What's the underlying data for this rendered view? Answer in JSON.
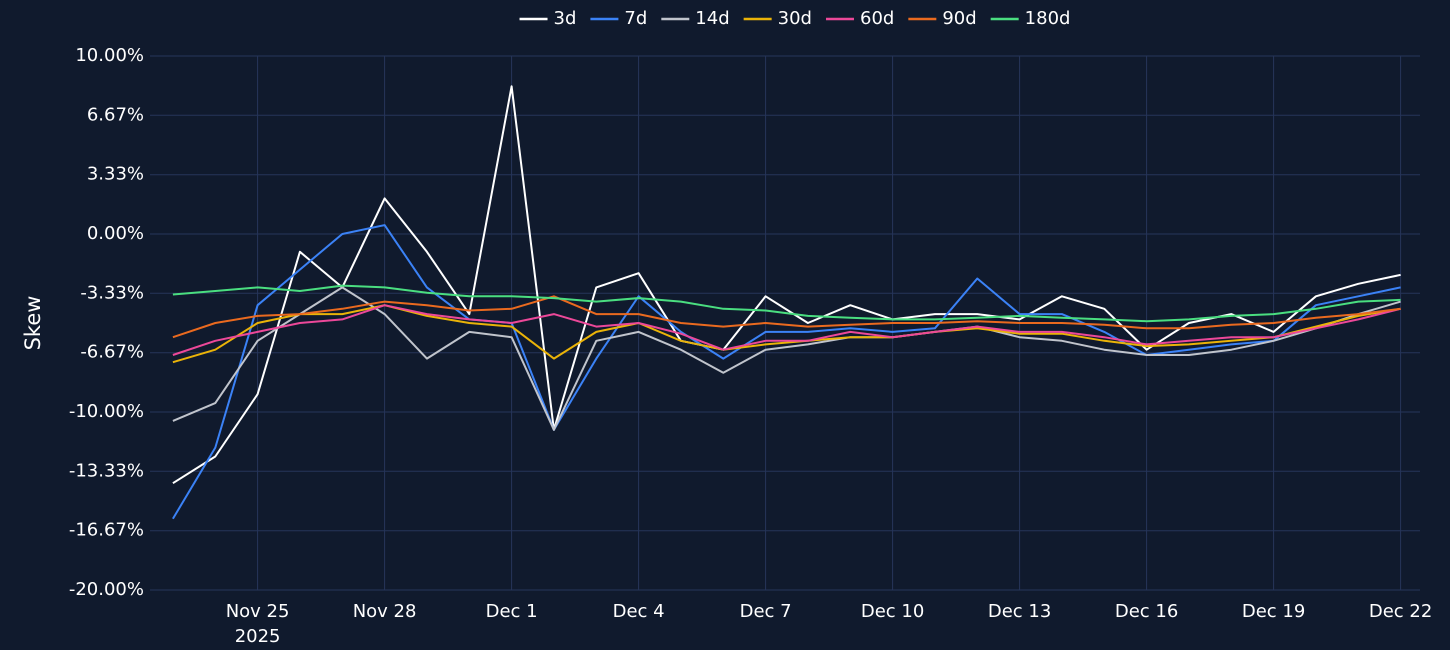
{
  "chart_data": {
    "type": "line",
    "ylabel": "Skew",
    "x": [
      "2025-11-23",
      "2025-11-24",
      "2025-11-25",
      "2025-11-26",
      "2025-11-27",
      "2025-11-28",
      "2025-11-29",
      "2025-11-30",
      "2025-12-01",
      "2025-12-02",
      "2025-12-03",
      "2025-12-04",
      "2025-12-05",
      "2025-12-06",
      "2025-12-07",
      "2025-12-08",
      "2025-12-09",
      "2025-12-10",
      "2025-12-11",
      "2025-12-12",
      "2025-12-13",
      "2025-12-14",
      "2025-12-15",
      "2025-12-16",
      "2025-12-17",
      "2025-12-18",
      "2025-12-19",
      "2025-12-20",
      "2025-12-21",
      "2025-12-22"
    ],
    "xlim": [
      "2025-11-22T11:00",
      "2025-12-22T11:00"
    ],
    "xticks": [
      {
        "value": "2025-11-25",
        "label": "Nov 25"
      },
      {
        "value": "2025-11-28",
        "label": "Nov 28"
      },
      {
        "value": "2025-12-01",
        "label": "Dec 1"
      },
      {
        "value": "2025-12-04",
        "label": "Dec 4"
      },
      {
        "value": "2025-12-07",
        "label": "Dec 7"
      },
      {
        "value": "2025-12-10",
        "label": "Dec 10"
      },
      {
        "value": "2025-12-13",
        "label": "Dec 13"
      },
      {
        "value": "2025-12-16",
        "label": "Dec 16"
      },
      {
        "value": "2025-12-19",
        "label": "Dec 19"
      },
      {
        "value": "2025-12-22",
        "label": "Dec 22"
      }
    ],
    "xtick_year": "2025",
    "ylim": [
      -20,
      10
    ],
    "yticks": [
      {
        "value": 10,
        "label": "10.00%"
      },
      {
        "value": 6.67,
        "label": "6.67%"
      },
      {
        "value": 3.33,
        "label": "3.33%"
      },
      {
        "value": 0,
        "label": "0.00%"
      },
      {
        "value": -3.33,
        "label": "-3.33%"
      },
      {
        "value": -6.67,
        "label": "-6.67%"
      },
      {
        "value": -10,
        "label": "-10.00%"
      },
      {
        "value": -13.33,
        "label": "-13.33%"
      },
      {
        "value": -16.67,
        "label": "-16.67%"
      },
      {
        "value": -20,
        "label": "-20.00%"
      }
    ],
    "grid": true,
    "legend": "top",
    "series": [
      {
        "name": "3d",
        "color": "#ffffff",
        "values": [
          -14,
          -12.5,
          -9,
          -1,
          -3,
          2,
          -1,
          -4.5,
          8.3,
          -11,
          -3,
          -2.2,
          -6,
          -6.5,
          -3.5,
          -5,
          -4,
          -4.8,
          -4.5,
          -4.5,
          -4.8,
          -3.5,
          -4.2,
          -6.5,
          -5,
          -4.5,
          -5.5,
          -3.5,
          -2.8,
          -2.3
        ]
      },
      {
        "name": "7d",
        "color": "#3b82f6",
        "values": [
          -16,
          -12,
          -4,
          -2,
          0,
          0.5,
          -3,
          -4.8,
          -5,
          -11,
          -7,
          -3.5,
          -5.5,
          -7,
          -5.5,
          -5.5,
          -5.3,
          -5.5,
          -5.3,
          -2.5,
          -4.5,
          -4.5,
          -5.5,
          -6.8,
          -6.5,
          -6.2,
          -6,
          -4,
          -3.5,
          -3
        ]
      },
      {
        "name": "14d",
        "color": "#c0c4cc",
        "values": [
          -10.5,
          -9.5,
          -6,
          -4.5,
          -3,
          -4.5,
          -7,
          -5.5,
          -5.8,
          -11,
          -6,
          -5.5,
          -6.5,
          -7.8,
          -6.5,
          -6.2,
          -5.8,
          -5.8,
          -5.5,
          -5.2,
          -5.8,
          -6,
          -6.5,
          -6.8,
          -6.8,
          -6.5,
          -6,
          -5.3,
          -4.5,
          -3.8
        ]
      },
      {
        "name": "30d",
        "color": "#eab308",
        "values": [
          -7.2,
          -6.5,
          -5,
          -4.5,
          -4.5,
          -4,
          -4.6,
          -5,
          -5.2,
          -7,
          -5.5,
          -5,
          -6,
          -6.5,
          -6.2,
          -6,
          -5.8,
          -5.8,
          -5.5,
          -5.3,
          -5.6,
          -5.6,
          -6,
          -6.3,
          -6.2,
          -6,
          -5.8,
          -5.2,
          -4.6,
          -4.2
        ]
      },
      {
        "name": "60d",
        "color": "#ec4899",
        "values": [
          -6.8,
          -6,
          -5.5,
          -5,
          -4.8,
          -4,
          -4.5,
          -4.8,
          -5,
          -4.5,
          -5.2,
          -5,
          -5.6,
          -6.5,
          -6,
          -6,
          -5.5,
          -5.8,
          -5.5,
          -5.2,
          -5.5,
          -5.5,
          -5.8,
          -6.2,
          -6,
          -5.8,
          -5.8,
          -5.3,
          -4.8,
          -4.2
        ]
      },
      {
        "name": "90d",
        "color": "#ea6a1f",
        "values": [
          -5.8,
          -5,
          -4.6,
          -4.5,
          -4.2,
          -3.8,
          -4,
          -4.3,
          -4.2,
          -3.5,
          -4.5,
          -4.5,
          -5,
          -5.2,
          -5,
          -5.2,
          -5.1,
          -5,
          -5,
          -4.9,
          -5,
          -5,
          -5.1,
          -5.3,
          -5.3,
          -5.1,
          -5,
          -4.7,
          -4.5,
          -4.2
        ]
      },
      {
        "name": "180d",
        "color": "#4ade80",
        "values": [
          -3.4,
          -3.2,
          -3,
          -3.2,
          -2.9,
          -3,
          -3.3,
          -3.5,
          -3.5,
          -3.6,
          -3.8,
          -3.6,
          -3.8,
          -4.2,
          -4.3,
          -4.6,
          -4.7,
          -4.8,
          -4.8,
          -4.7,
          -4.6,
          -4.7,
          -4.8,
          -4.9,
          -4.8,
          -4.6,
          -4.5,
          -4.2,
          -3.8,
          -3.7
        ]
      }
    ]
  }
}
